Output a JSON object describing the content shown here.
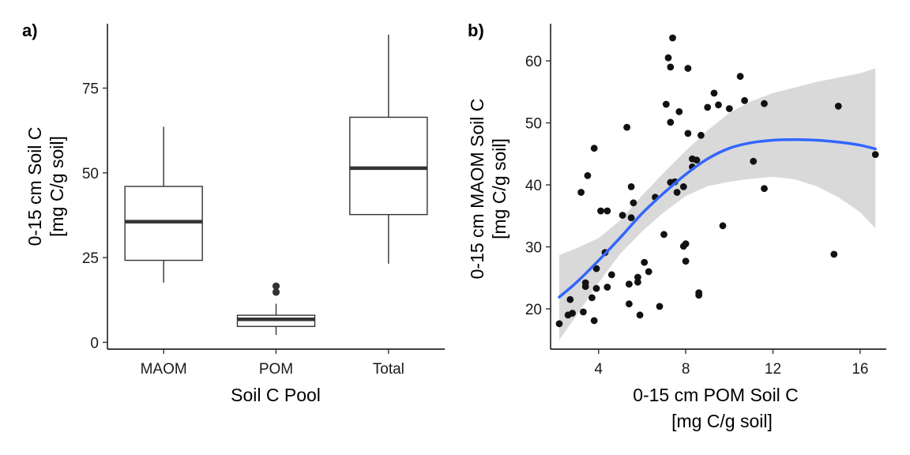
{
  "chart_data": [
    {
      "type": "boxplot",
      "panel_label": "a)",
      "xlabel": "Soil C Pool",
      "ylabel": [
        "0-15 cm Soil C",
        "[mg C/g soil]"
      ],
      "categories": [
        "MAOM",
        "POM",
        "Total"
      ],
      "ylim": [
        -2,
        94
      ],
      "yticks": [
        0,
        25,
        50,
        75
      ],
      "boxes": [
        {
          "category": "MAOM",
          "min": 17.6,
          "q1": 24.2,
          "median": 35.6,
          "q3": 46.0,
          "max": 63.6,
          "outliers": []
        },
        {
          "category": "POM",
          "min": 2.2,
          "q1": 4.7,
          "median": 6.8,
          "q3": 8.0,
          "max": 11.4,
          "outliers": [
            14.8,
            16.6
          ]
        },
        {
          "category": "Total",
          "min": 23.2,
          "q1": 37.7,
          "median": 51.4,
          "q3": 66.4,
          "max": 90.8,
          "outliers": []
        }
      ],
      "grid": false,
      "colors": {
        "box_fill": "#ffffff",
        "box_line": "#333333",
        "outlier": "#333333"
      }
    },
    {
      "type": "scatter",
      "panel_label": "b)",
      "xlabel": [
        "0-15 cm POM Soil C",
        "[mg C/g soil]"
      ],
      "ylabel": [
        "0-15 cm MAOM Soil C",
        "[mg C/g soil]"
      ],
      "xlim": [
        1.8,
        17.2
      ],
      "ylim": [
        13.5,
        66
      ],
      "xticks": [
        4,
        8,
        12,
        16
      ],
      "yticks": [
        20,
        30,
        40,
        50,
        60
      ],
      "points": [
        [
          2.2,
          17.6
        ],
        [
          2.6,
          19.0
        ],
        [
          2.7,
          21.5
        ],
        [
          2.8,
          19.3
        ],
        [
          3.2,
          38.8
        ],
        [
          3.3,
          19.5
        ],
        [
          3.4,
          24.2
        ],
        [
          3.4,
          23.6
        ],
        [
          3.5,
          41.5
        ],
        [
          3.8,
          45.9
        ],
        [
          3.7,
          21.8
        ],
        [
          3.9,
          23.3
        ],
        [
          3.9,
          26.5
        ],
        [
          3.8,
          18.1
        ],
        [
          4.1,
          35.8
        ],
        [
          4.4,
          35.8
        ],
        [
          4.3,
          29.1
        ],
        [
          4.4,
          23.5
        ],
        [
          4.6,
          25.5
        ],
        [
          5.1,
          35.1
        ],
        [
          5.3,
          49.3
        ],
        [
          5.4,
          20.8
        ],
        [
          5.4,
          24.0
        ],
        [
          5.5,
          34.7
        ],
        [
          5.5,
          39.7
        ],
        [
          5.6,
          37.1
        ],
        [
          5.8,
          24.3
        ],
        [
          5.8,
          25.1
        ],
        [
          5.9,
          19.0
        ],
        [
          6.1,
          27.5
        ],
        [
          6.3,
          26.0
        ],
        [
          6.6,
          38.0
        ],
        [
          6.8,
          20.4
        ],
        [
          7.1,
          53.0
        ],
        [
          7.0,
          32.0
        ],
        [
          7.2,
          60.5
        ],
        [
          7.3,
          59.0
        ],
        [
          7.3,
          50.1
        ],
        [
          7.3,
          40.4
        ],
        [
          7.4,
          63.7
        ],
        [
          7.5,
          40.5
        ],
        [
          7.6,
          38.8
        ],
        [
          7.7,
          51.8
        ],
        [
          7.9,
          39.7
        ],
        [
          7.9,
          30.1
        ],
        [
          8.0,
          30.5
        ],
        [
          8.0,
          27.7
        ],
        [
          8.1,
          58.8
        ],
        [
          8.1,
          48.3
        ],
        [
          8.3,
          42.9
        ],
        [
          8.3,
          44.2
        ],
        [
          8.5,
          44.0
        ],
        [
          8.6,
          22.6
        ],
        [
          8.6,
          22.2
        ],
        [
          8.7,
          48.0
        ],
        [
          9.0,
          52.5
        ],
        [
          9.3,
          54.8
        ],
        [
          9.5,
          52.9
        ],
        [
          9.7,
          33.4
        ],
        [
          10.0,
          52.3
        ],
        [
          10.5,
          57.5
        ],
        [
          10.7,
          53.6
        ],
        [
          11.1,
          43.8
        ],
        [
          11.6,
          53.1
        ],
        [
          11.6,
          39.4
        ],
        [
          14.8,
          28.8
        ],
        [
          15.0,
          52.7
        ],
        [
          16.7,
          44.9
        ]
      ],
      "smooth_fit": {
        "x": [
          2.2,
          3.0,
          4.0,
          5.0,
          6.0,
          7.0,
          8.0,
          9.0,
          10.0,
          11.0,
          12.0,
          13.0,
          14.0,
          15.0,
          16.0,
          16.7
        ],
        "y": [
          21.9,
          24.3,
          27.8,
          31.5,
          35.4,
          38.7,
          41.7,
          44.2,
          45.9,
          46.8,
          47.2,
          47.3,
          47.2,
          46.9,
          46.4,
          45.8
        ],
        "lower": [
          15.0,
          19.0,
          24.2,
          28.9,
          32.5,
          35.6,
          38.2,
          39.8,
          40.5,
          41.0,
          41.3,
          40.9,
          39.8,
          38.0,
          35.6,
          33.0
        ],
        "upper": [
          28.7,
          29.8,
          31.4,
          34.3,
          38.3,
          42.0,
          45.5,
          48.8,
          51.6,
          53.5,
          54.8,
          55.7,
          56.6,
          57.3,
          58.0,
          58.8
        ]
      },
      "grid": false,
      "colors": {
        "point": "#111111",
        "line": "#3366ff",
        "band": "#d9d9d9"
      }
    }
  ]
}
